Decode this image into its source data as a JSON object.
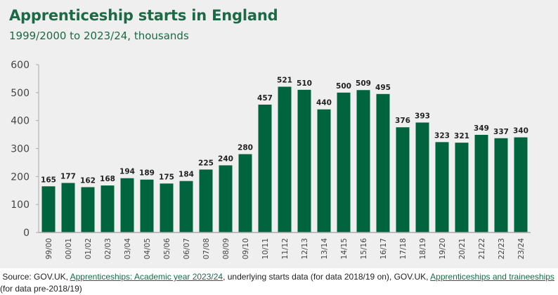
{
  "chart_data": {
    "type": "bar",
    "title": "Apprenticeship starts in England",
    "subtitle": "1999/2000 to 2023/24, thousands",
    "categories": [
      "99/00",
      "00/01",
      "01/02",
      "02/03",
      "03/04",
      "04/05",
      "05/06",
      "06/07",
      "07/08",
      "08/09",
      "09/10",
      "10/11",
      "11/12",
      "12/13",
      "13/14",
      "14/15",
      "15/16",
      "16/17",
      "17/18",
      "18/19",
      "19/20",
      "20/21",
      "21/22",
      "22/23",
      "23/24"
    ],
    "values": [
      165,
      177,
      162,
      168,
      194,
      189,
      175,
      184,
      225,
      240,
      280,
      457,
      521,
      510,
      440,
      500,
      509,
      495,
      376,
      393,
      323,
      321,
      349,
      337,
      340
    ],
    "ylim": [
      0,
      600
    ],
    "yticks": [
      0,
      100,
      200,
      300,
      400,
      500,
      600
    ],
    "grid": false,
    "bar_color": "#00643f",
    "xlabel": "",
    "ylabel": ""
  },
  "source": {
    "prefix": "Source:  GOV.UK, ",
    "link1": "Apprenticeships: Academic year 2023/24",
    "middle": ", underlying starts data (for data 2018/19 on), GOV.UK, ",
    "link2": "Apprenticeships and traineeships",
    "suffix": " (for data pre-2018/19)"
  }
}
